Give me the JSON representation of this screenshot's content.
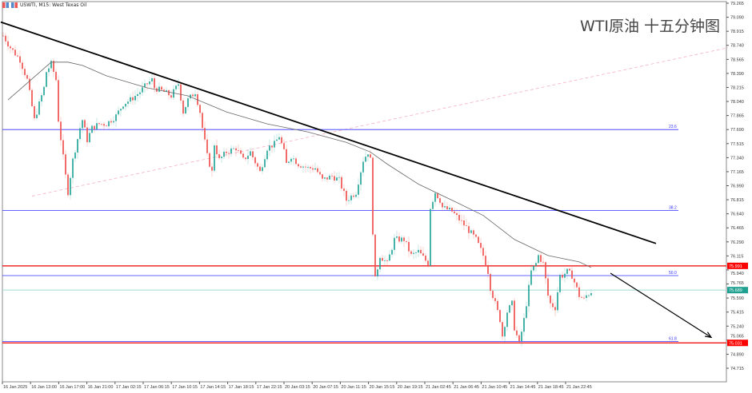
{
  "header": {
    "symbol_label": "USWTI, M15:  West Texas Oil"
  },
  "overlay_title": "WTI原油 十五分钟图",
  "chart_data": {
    "type": "candlestick",
    "symbol": "USWTI",
    "timeframe": "M15",
    "instrument": "West Texas Oil",
    "ylim": [
      74.715,
      79.265
    ],
    "y_ticks": [
      "79.265",
      "79.090",
      "78.915",
      "78.740",
      "78.565",
      "78.390",
      "78.215",
      "78.040",
      "77.865",
      "77.690",
      "77.515",
      "77.340",
      "77.165",
      "76.990",
      "76.815",
      "76.640",
      "76.465",
      "76.290",
      "76.115",
      "75.940",
      "75.765",
      "75.590",
      "75.415",
      "75.240",
      "75.065",
      "74.890",
      "74.715"
    ],
    "x_ticks": [
      "16 Jan 2025",
      "16 Jan 13:00",
      "16 Jan 17:00",
      "16 Jan 21:00",
      "17 Jan 02:15",
      "17 Jan 06:15",
      "17 Jan 10:15",
      "17 Jan 14:15",
      "17 Jan 18:15",
      "17 Jan 22:15",
      "20 Jan 03:15",
      "20 Jan 07:15",
      "20 Jan 11:15",
      "20 Jan 15:15",
      "20 Jan 19:15",
      "21 Jan 02:45",
      "21 Jan 06:45",
      "21 Jan 10:45",
      "21 Jan 14:45",
      "21 Jan 18:45",
      "21 Jan 22:45"
    ],
    "approx_close_path": [
      [
        0,
        78.86
      ],
      [
        3,
        78.71
      ],
      [
        7,
        78.56
      ],
      [
        10,
        78.31
      ],
      [
        13,
        77.81
      ],
      [
        17,
        78.21
      ],
      [
        18,
        78.41
      ],
      [
        20,
        78.51
      ],
      [
        22,
        78.31
      ],
      [
        23,
        77.81
      ],
      [
        26,
        77.11
      ],
      [
        27,
        76.91
      ],
      [
        29,
        77.31
      ],
      [
        32,
        77.71
      ],
      [
        33,
        77.81
      ],
      [
        35,
        77.56
      ],
      [
        37,
        77.71
      ],
      [
        40,
        77.76
      ],
      [
        43,
        77.76
      ],
      [
        47,
        77.86
      ],
      [
        50,
        78.01
      ],
      [
        53,
        78.06
      ],
      [
        57,
        78.16
      ],
      [
        60,
        78.26
      ],
      [
        62,
        78.31
      ],
      [
        63,
        78.21
      ],
      [
        67,
        78.16
      ],
      [
        70,
        78.11
      ],
      [
        73,
        78.26
      ],
      [
        75,
        77.91
      ],
      [
        77,
        78.06
      ],
      [
        80,
        78.16
      ],
      [
        82,
        77.91
      ],
      [
        83,
        77.71
      ],
      [
        85,
        77.36
      ],
      [
        87,
        77.16
      ],
      [
        88,
        77.51
      ],
      [
        90,
        77.31
      ],
      [
        93,
        77.41
      ],
      [
        97,
        77.46
      ],
      [
        100,
        77.31
      ],
      [
        103,
        77.41
      ],
      [
        107,
        77.16
      ],
      [
        110,
        77.46
      ],
      [
        113,
        77.51
      ],
      [
        115,
        77.61
      ],
      [
        117,
        77.41
      ],
      [
        118,
        77.26
      ],
      [
        120,
        77.36
      ],
      [
        123,
        77.26
      ],
      [
        127,
        77.21
      ],
      [
        130,
        77.21
      ],
      [
        133,
        77.06
      ],
      [
        137,
        77.11
      ],
      [
        140,
        77.06
      ],
      [
        143,
        76.81
      ],
      [
        147,
        76.91
      ],
      [
        150,
        77.31
      ],
      [
        152,
        77.41
      ],
      [
        153,
        77.31
      ],
      [
        154,
        76.42
      ],
      [
        155,
        75.82
      ],
      [
        157,
        76.12
      ],
      [
        160,
        76.02
      ],
      [
        163,
        76.32
      ],
      [
        167,
        76.32
      ],
      [
        170,
        76.12
      ],
      [
        173,
        76.17
      ],
      [
        177,
        76.02
      ],
      [
        178,
        76.72
      ],
      [
        180,
        76.91
      ],
      [
        182,
        76.81
      ],
      [
        183,
        76.72
      ],
      [
        187,
        76.67
      ],
      [
        190,
        76.57
      ],
      [
        193,
        76.47
      ],
      [
        197,
        76.32
      ],
      [
        200,
        76.12
      ],
      [
        202,
        75.92
      ],
      [
        203,
        75.72
      ],
      [
        205,
        75.52
      ],
      [
        207,
        75.32
      ],
      [
        208,
        75.12
      ],
      [
        210,
        75.42
      ],
      [
        212,
        75.52
      ],
      [
        213,
        75.22
      ],
      [
        215,
        75.02
      ],
      [
        217,
        75.32
      ],
      [
        218,
        75.52
      ],
      [
        220,
        75.92
      ],
      [
        222,
        76.02
      ],
      [
        223,
        76.12
      ],
      [
        225,
        76.02
      ],
      [
        227,
        75.62
      ],
      [
        228,
        75.52
      ],
      [
        230,
        75.47
      ],
      [
        232,
        75.87
      ],
      [
        233,
        75.87
      ],
      [
        235,
        75.92
      ],
      [
        237,
        75.87
      ],
      [
        240,
        75.62
      ],
      [
        242,
        75.57
      ],
      [
        243,
        75.62
      ],
      [
        245,
        75.67
      ]
    ],
    "moving_average": [
      [
        2,
        78.06
      ],
      [
        20,
        78.53
      ],
      [
        27,
        78.53
      ],
      [
        33,
        78.49
      ],
      [
        43,
        78.36
      ],
      [
        60,
        78.21
      ],
      [
        77,
        78.11
      ],
      [
        93,
        77.91
      ],
      [
        110,
        77.76
      ],
      [
        127,
        77.66
      ],
      [
        143,
        77.53
      ],
      [
        153,
        77.41
      ],
      [
        160,
        77.26
      ],
      [
        173,
        77.01
      ],
      [
        187,
        76.81
      ],
      [
        200,
        76.62
      ],
      [
        213,
        76.32
      ],
      [
        227,
        76.12
      ],
      [
        240,
        76.04
      ],
      [
        245,
        75.97
      ]
    ],
    "trendline": {
      "from": [
        -1,
        79.03
      ],
      "to": [
        272,
        76.27
      ]
    },
    "arrow": {
      "from": [
        253,
        75.9
      ],
      "to": [
        295,
        75.1
      ]
    },
    "dashed_line": {
      "from": [
        12,
        76.86
      ],
      "to": [
        302,
        78.71
      ]
    },
    "fib_levels": [
      {
        "label": "23.6",
        "price": 77.69
      },
      {
        "label": "38.2",
        "price": 76.68
      },
      {
        "label": "50.0",
        "price": 75.87
      },
      {
        "label": "61.8",
        "price": 75.05
      }
    ],
    "price_lines": [
      {
        "label": "75.991",
        "price": 75.991,
        "color": "#ff0000"
      },
      {
        "label": "75.689",
        "price": 75.689,
        "color": "#20a090"
      },
      {
        "label": "75.031",
        "price": 75.031,
        "color": "#ff0000"
      }
    ],
    "colors": {
      "bull": "#26a69a",
      "bear": "#ef5350",
      "fib": "#3030ff",
      "ma": "#666666",
      "trend": "#000000"
    }
  }
}
